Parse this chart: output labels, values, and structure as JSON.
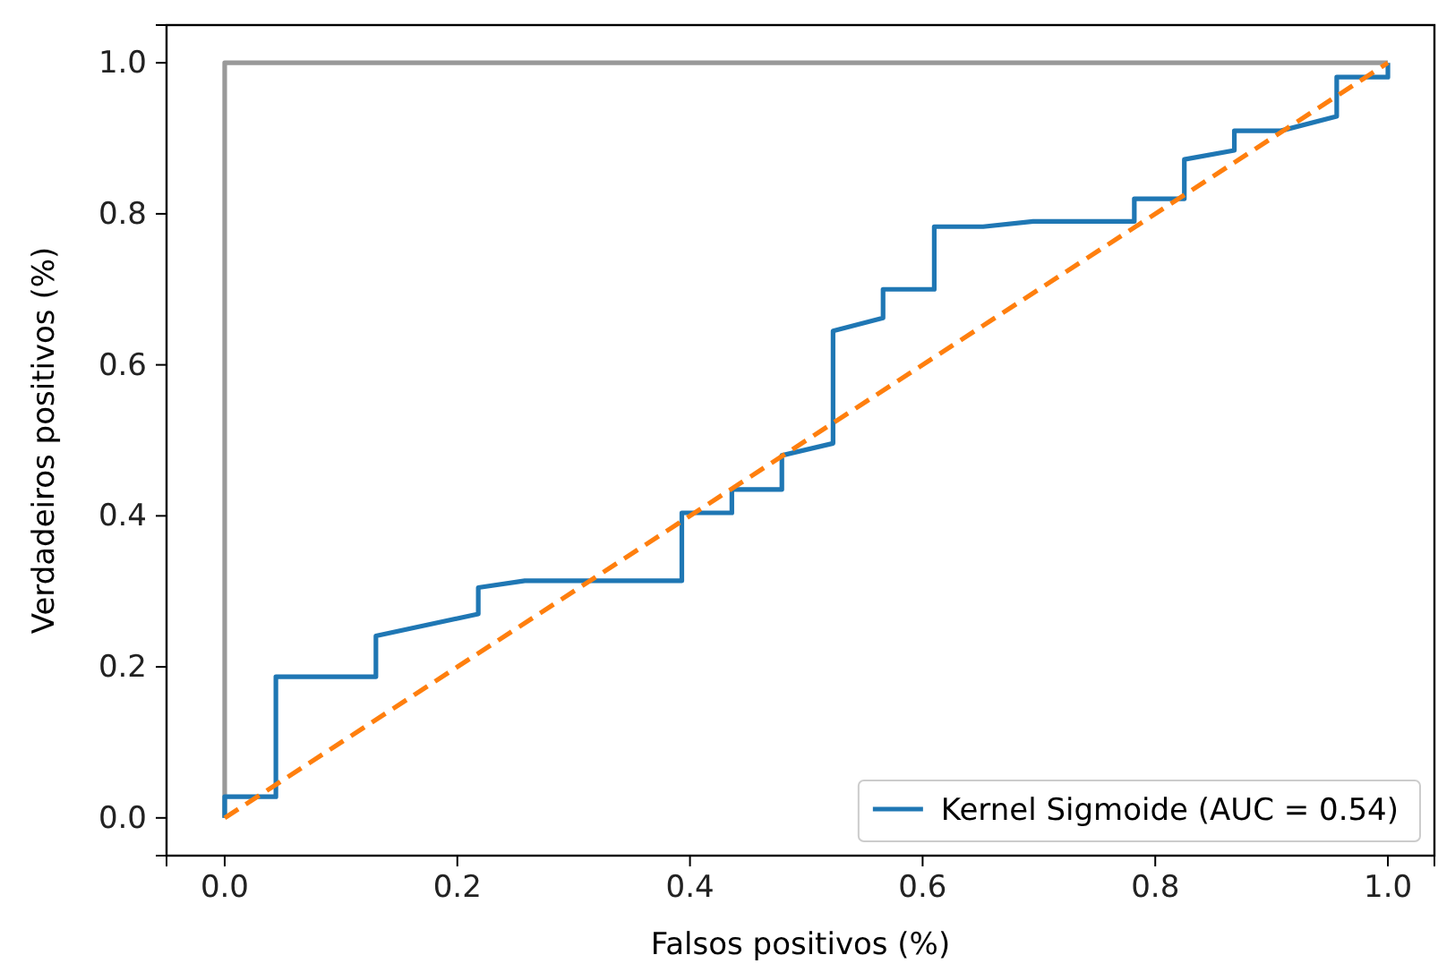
{
  "chart_data": {
    "type": "line",
    "xlabel": "Falsos positivos (%)",
    "ylabel": "Verdadeiros positivos (%)",
    "xlim": [
      -0.05,
      1.04
    ],
    "ylim": [
      -0.05,
      1.05
    ],
    "xticks": [
      {
        "value": 0,
        "label": "0.0"
      },
      {
        "value": 0.2,
        "label": "0.2"
      },
      {
        "value": 0.4,
        "label": "0.4"
      },
      {
        "value": 0.6,
        "label": "0.6"
      },
      {
        "value": 0.8,
        "label": "0.8"
      },
      {
        "value": 1,
        "label": "1.0"
      }
    ],
    "yticks": [
      {
        "value": 0,
        "label": "0.0"
      },
      {
        "value": 0.2,
        "label": "0.2"
      },
      {
        "value": 0.4,
        "label": "0.4"
      },
      {
        "value": 0.6,
        "label": "0.6"
      },
      {
        "value": 0.8,
        "label": "0.8"
      },
      {
        "value": 1,
        "label": "1.0"
      }
    ],
    "legend": "bottom right",
    "grid": false,
    "series": [
      {
        "color": "#999999",
        "x": [
          0,
          0,
          1
        ],
        "values": [
          0,
          1,
          1
        ]
      },
      {
        "name": "Kernel Sigmoide (AUC = 0.54)",
        "color": "#1f77b4",
        "x": [
          0,
          0,
          0.044,
          0.044,
          0.13,
          0.13,
          0.218,
          0.218,
          0.258,
          0.393,
          0.393,
          0.436,
          0.436,
          0.479,
          0.479,
          0.523,
          0.523,
          0.566,
          0.566,
          0.61,
          0.61,
          0.652,
          0.695,
          0.782,
          0.782,
          0.825,
          0.825,
          0.868,
          0.868,
          0.908,
          0.956,
          0.956,
          1,
          1
        ],
        "values": [
          0,
          0.028,
          0.028,
          0.187,
          0.187,
          0.241,
          0.27,
          0.305,
          0.314,
          0.314,
          0.404,
          0.404,
          0.435,
          0.435,
          0.48,
          0.496,
          0.645,
          0.662,
          0.7,
          0.7,
          0.783,
          0.783,
          0.79,
          0.79,
          0.82,
          0.82,
          0.872,
          0.884,
          0.91,
          0.91,
          0.929,
          0.981,
          0.981,
          1
        ]
      },
      {
        "color": "#ff7f0e",
        "line_style": "dashed",
        "x": [
          0,
          1
        ],
        "values": [
          0,
          1
        ]
      }
    ]
  }
}
